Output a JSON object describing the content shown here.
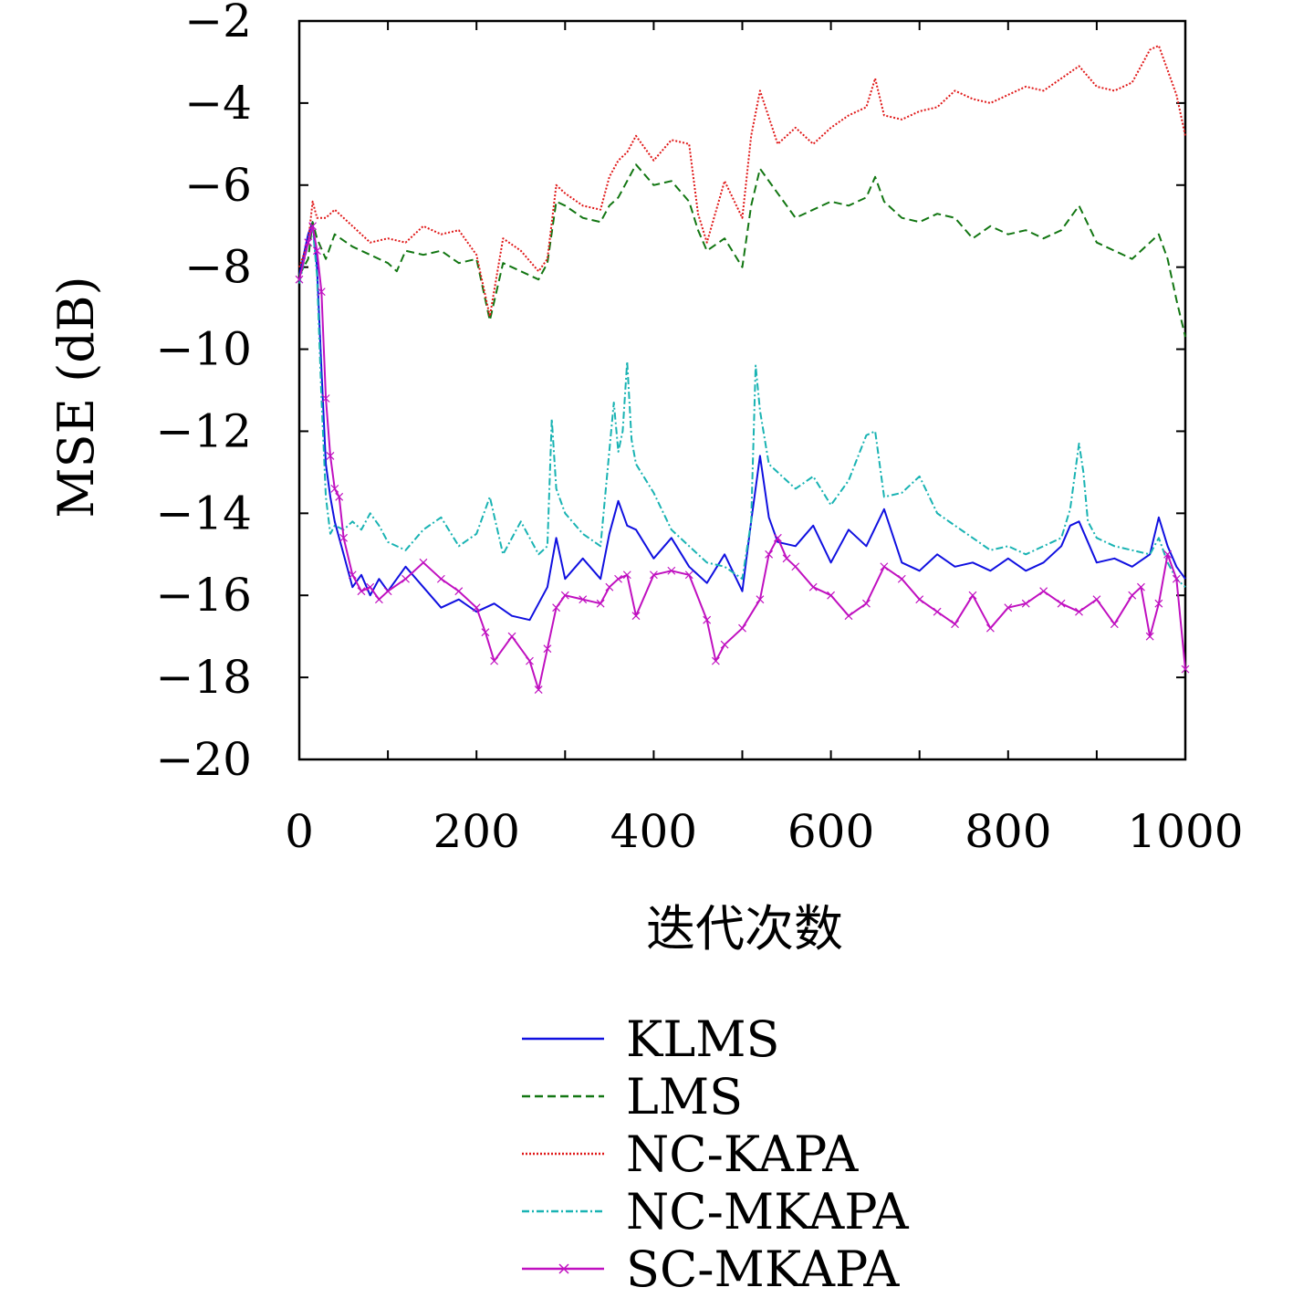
{
  "chart_data": {
    "type": "line",
    "title": "",
    "xlabel": "迭代次数",
    "ylabel": "MSE (dB)",
    "xlim": [
      0,
      1000
    ],
    "ylim": [
      -20,
      -2
    ],
    "xticks": [
      0,
      200,
      400,
      600,
      800,
      1000
    ],
    "yticks": [
      -2,
      -4,
      -6,
      -8,
      -10,
      -12,
      -14,
      -16,
      -18,
      -20
    ],
    "xtick_labels": [
      "0",
      "200",
      "400",
      "600",
      "800",
      "1000"
    ],
    "ytick_labels": [
      "−2",
      "−4",
      "−6",
      "−8",
      "−10",
      "−12",
      "−14",
      "−16",
      "−18",
      "−20"
    ],
    "grid": false,
    "legend_position": "below",
    "series": [
      {
        "name": "KLMS",
        "color": "#1010e0",
        "style": "solid",
        "x": [
          0,
          10,
          15,
          20,
          25,
          30,
          35,
          40,
          50,
          60,
          70,
          80,
          90,
          100,
          120,
          140,
          160,
          180,
          200,
          220,
          240,
          260,
          280,
          290,
          300,
          320,
          340,
          350,
          360,
          370,
          380,
          400,
          420,
          440,
          460,
          480,
          500,
          510,
          520,
          530,
          540,
          560,
          580,
          600,
          620,
          640,
          660,
          680,
          700,
          720,
          740,
          760,
          780,
          800,
          820,
          840,
          860,
          870,
          880,
          900,
          920,
          940,
          960,
          970,
          980,
          990,
          1000
        ],
        "y": [
          -8.2,
          -7.2,
          -6.9,
          -8.0,
          -10.5,
          -12.8,
          -13.6,
          -14.2,
          -15.0,
          -15.8,
          -15.5,
          -16.0,
          -15.6,
          -15.9,
          -15.3,
          -15.8,
          -16.3,
          -16.1,
          -16.4,
          -16.2,
          -16.5,
          -16.6,
          -15.8,
          -14.6,
          -15.6,
          -15.1,
          -15.6,
          -14.5,
          -13.7,
          -14.3,
          -14.4,
          -15.1,
          -14.6,
          -15.3,
          -15.7,
          -15.0,
          -15.9,
          -14.2,
          -12.6,
          -14.1,
          -14.7,
          -14.8,
          -14.3,
          -15.2,
          -14.4,
          -14.8,
          -13.9,
          -15.2,
          -15.4,
          -15.0,
          -15.3,
          -15.2,
          -15.4,
          -15.1,
          -15.4,
          -15.2,
          -14.8,
          -14.3,
          -14.2,
          -15.2,
          -15.1,
          -15.3,
          -15.0,
          -14.1,
          -14.8,
          -15.3,
          -15.6
        ]
      },
      {
        "name": "LMS",
        "color": "#127612",
        "style": "dashed",
        "x": [
          0,
          10,
          15,
          20,
          30,
          40,
          60,
          80,
          100,
          110,
          120,
          140,
          160,
          180,
          200,
          215,
          230,
          250,
          270,
          280,
          290,
          300,
          320,
          340,
          350,
          360,
          370,
          380,
          400,
          420,
          440,
          450,
          460,
          480,
          500,
          510,
          520,
          540,
          560,
          580,
          600,
          620,
          640,
          650,
          660,
          680,
          700,
          720,
          740,
          760,
          780,
          800,
          820,
          840,
          860,
          880,
          900,
          920,
          940,
          960,
          970,
          980,
          990,
          1000
        ],
        "y": [
          -8.2,
          -7.8,
          -6.9,
          -7.3,
          -7.8,
          -7.2,
          -7.5,
          -7.7,
          -7.9,
          -8.1,
          -7.6,
          -7.7,
          -7.6,
          -7.9,
          -7.8,
          -9.3,
          -7.9,
          -8.1,
          -8.3,
          -7.9,
          -6.4,
          -6.5,
          -6.8,
          -6.9,
          -6.5,
          -6.3,
          -5.9,
          -5.5,
          -6.0,
          -5.9,
          -6.4,
          -7.1,
          -7.6,
          -7.3,
          -8.0,
          -6.5,
          -5.6,
          -6.2,
          -6.8,
          -6.6,
          -6.4,
          -6.5,
          -6.3,
          -5.8,
          -6.4,
          -6.8,
          -6.9,
          -6.7,
          -6.8,
          -7.3,
          -7.0,
          -7.2,
          -7.1,
          -7.3,
          -7.1,
          -6.5,
          -7.4,
          -7.6,
          -7.8,
          -7.4,
          -7.2,
          -7.8,
          -8.8,
          -9.7
        ]
      },
      {
        "name": "NC-KAPA",
        "color": "#e01818",
        "style": "dotted",
        "x": [
          0,
          10,
          15,
          20,
          30,
          40,
          60,
          80,
          100,
          120,
          140,
          160,
          180,
          200,
          215,
          230,
          250,
          270,
          280,
          290,
          300,
          320,
          340,
          350,
          360,
          370,
          380,
          400,
          420,
          440,
          450,
          460,
          480,
          500,
          510,
          520,
          540,
          560,
          580,
          600,
          620,
          640,
          650,
          660,
          680,
          700,
          720,
          740,
          760,
          780,
          800,
          820,
          840,
          860,
          880,
          900,
          920,
          940,
          960,
          970,
          980,
          990,
          1000
        ],
        "y": [
          -8.0,
          -7.4,
          -6.4,
          -6.8,
          -6.8,
          -6.6,
          -7.0,
          -7.4,
          -7.3,
          -7.4,
          -7.0,
          -7.2,
          -7.1,
          -7.7,
          -9.2,
          -7.3,
          -7.6,
          -8.1,
          -7.8,
          -6.0,
          -6.2,
          -6.5,
          -6.6,
          -5.8,
          -5.4,
          -5.2,
          -4.8,
          -5.4,
          -4.9,
          -5.0,
          -6.7,
          -7.4,
          -5.9,
          -6.8,
          -4.8,
          -3.7,
          -5.0,
          -4.6,
          -5.0,
          -4.6,
          -4.3,
          -4.1,
          -3.4,
          -4.3,
          -4.4,
          -4.2,
          -4.1,
          -3.7,
          -3.9,
          -4.0,
          -3.8,
          -3.6,
          -3.7,
          -3.4,
          -3.1,
          -3.6,
          -3.7,
          -3.5,
          -2.7,
          -2.6,
          -3.2,
          -3.8,
          -4.8
        ]
      },
      {
        "name": "NC-MKAPA",
        "color": "#19b3b3",
        "style": "dashdot",
        "x": [
          0,
          10,
          15,
          20,
          25,
          30,
          35,
          40,
          50,
          60,
          70,
          80,
          90,
          100,
          120,
          140,
          160,
          180,
          200,
          215,
          230,
          250,
          270,
          280,
          285,
          290,
          300,
          320,
          340,
          355,
          360,
          365,
          370,
          375,
          380,
          400,
          420,
          440,
          460,
          480,
          500,
          510,
          515,
          520,
          530,
          540,
          560,
          580,
          600,
          620,
          640,
          650,
          660,
          680,
          700,
          720,
          740,
          760,
          780,
          800,
          820,
          840,
          860,
          870,
          880,
          885,
          890,
          900,
          920,
          940,
          960,
          970,
          980,
          990,
          1000
        ],
        "y": [
          -8.4,
          -7.4,
          -7.0,
          -8.2,
          -11.2,
          -13.6,
          -14.5,
          -14.3,
          -14.4,
          -14.2,
          -14.4,
          -14.0,
          -14.3,
          -14.7,
          -14.9,
          -14.4,
          -14.1,
          -14.8,
          -14.5,
          -13.6,
          -15.0,
          -14.2,
          -15.0,
          -14.8,
          -11.7,
          -13.4,
          -14.0,
          -14.5,
          -14.8,
          -11.3,
          -12.5,
          -12.0,
          -10.3,
          -12.2,
          -12.8,
          -13.5,
          -14.4,
          -14.8,
          -15.2,
          -15.3,
          -15.6,
          -14.2,
          -10.4,
          -11.5,
          -12.8,
          -13.0,
          -13.4,
          -13.1,
          -13.8,
          -13.2,
          -12.1,
          -12.0,
          -13.6,
          -13.5,
          -13.1,
          -14.0,
          -14.3,
          -14.6,
          -14.9,
          -14.8,
          -15.0,
          -14.8,
          -14.6,
          -13.9,
          -12.3,
          -13.0,
          -14.2,
          -14.6,
          -14.8,
          -14.9,
          -15.0,
          -14.6,
          -15.2,
          -15.6,
          -15.8
        ]
      },
      {
        "name": "SC-MKAPA",
        "color": "#c010c0",
        "style": "solid-cross",
        "x": [
          0,
          10,
          15,
          20,
          25,
          30,
          35,
          40,
          45,
          50,
          60,
          70,
          80,
          90,
          100,
          120,
          140,
          160,
          180,
          200,
          210,
          220,
          240,
          260,
          270,
          280,
          290,
          300,
          320,
          340,
          350,
          360,
          370,
          380,
          400,
          420,
          440,
          460,
          470,
          480,
          500,
          520,
          530,
          540,
          550,
          560,
          580,
          600,
          620,
          640,
          660,
          680,
          700,
          720,
          740,
          760,
          780,
          800,
          820,
          840,
          860,
          880,
          900,
          920,
          940,
          950,
          960,
          970,
          980,
          990,
          1000
        ],
        "y": [
          -8.3,
          -7.4,
          -7.0,
          -7.6,
          -8.6,
          -11.2,
          -12.6,
          -13.4,
          -13.6,
          -14.6,
          -15.5,
          -15.9,
          -15.8,
          -16.1,
          -15.9,
          -15.6,
          -15.2,
          -15.6,
          -15.9,
          -16.3,
          -16.9,
          -17.6,
          -17.0,
          -17.6,
          -18.3,
          -17.3,
          -16.3,
          -16.0,
          -16.1,
          -16.2,
          -15.8,
          -15.6,
          -15.5,
          -16.5,
          -15.5,
          -15.4,
          -15.5,
          -16.6,
          -17.6,
          -17.2,
          -16.8,
          -16.1,
          -15.0,
          -14.6,
          -15.1,
          -15.3,
          -15.8,
          -16.0,
          -16.5,
          -16.2,
          -15.3,
          -15.6,
          -16.1,
          -16.4,
          -16.7,
          -16.0,
          -16.8,
          -16.3,
          -16.2,
          -15.9,
          -16.2,
          -16.4,
          -16.1,
          -16.7,
          -16.0,
          -15.8,
          -17.0,
          -16.2,
          -15.0,
          -15.6,
          -17.8
        ]
      }
    ]
  }
}
